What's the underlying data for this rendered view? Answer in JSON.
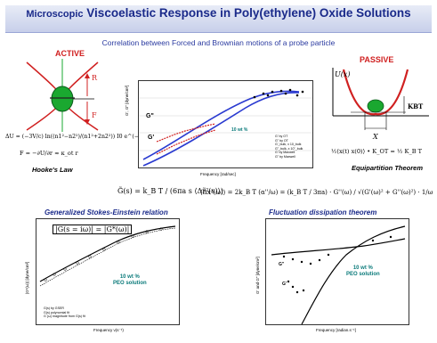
{
  "title_prefix": "Microscopic",
  "title_main": "Viscoelastic Response in Poly(ethylene) Oxide Solutions",
  "subtitle": "Correlation between Forced and Brownian motions of a probe particle",
  "active_label": "ACTIVE",
  "passive_label": "PASSIVE",
  "hookes_law": "Hooke's Law",
  "equipartition": "Equipartition Theorem",
  "gse_caption": "Generalized Stokes-Einstein relation",
  "fdt_caption": "Fluctuation dissipation theorem",
  "diagram_active": {
    "label_R": "R",
    "label_F": "F"
  },
  "diagram_passive": {
    "label_U": "U(x)",
    "label_KBT": "KBT",
    "label_X": "X"
  },
  "eq_du": "ΔU = (−3V/c) ln((n1²−n2²)/(n1²+2n2²)) I0 e^(−r²/s²)",
  "eq_force": "F = −∂U/∂r ≈ κ_ot r",
  "eq_equip": "½⟨x(t) x(0)⟩ • K_OT = ½ K_B T",
  "eq_gse": "G̃(s) = k_B T / (6πa s ⟨Δr̃²(s)⟩)",
  "eq_gs_box": "|G(s = iω)| = |G*(ω)|",
  "eq_fdt": "⟨Δx²(ω)⟩ = 2k_B T (α''/ω) = (k_B T / 3πa) · G''(ω) / √(G'(ω)² + G''(ω)²) · 1/ω",
  "plot_top": {
    "ylabel": "G', G\" [dyne/cm²]",
    "xlabel": "Frequency [rad/sec]",
    "label_Gpp": "G\"",
    "label_Gp": "G'",
    "concentration": "10 wt %",
    "legend": [
      "G' by OT",
      "G\" by OT",
      "G'_bulk, x 10_bulk",
      "G\"_bulk, x 10\"_bulk",
      "G' by Maxwell",
      "G\" by Maxwell"
    ]
  },
  "plot_bl": {
    "ylabel": "|G*(ω)| [dyne/cm²]",
    "xlabel": "Frequency ν(s⁻¹)",
    "concentration": "10 wt %",
    "solution": "PEO solution",
    "legend": [
      "G(s) by GSER",
      "G(s) polynomial fit",
      "G (ω) magnitude from G(s) fit"
    ]
  },
  "plot_br": {
    "ylabel": "G' and G\" [dyne/cm²]",
    "xlabel": "Frequency [radian.s⁻¹]",
    "label_Gpp": "G\"",
    "label_Gp": "G'",
    "concentration": "10 wt %",
    "solution": "PEO solution"
  },
  "colors": {
    "title": "#1a2a8a",
    "red": "#d02020",
    "blue": "#2a3ad0",
    "teal": "#0a7a7a",
    "green": "#1aa830"
  }
}
